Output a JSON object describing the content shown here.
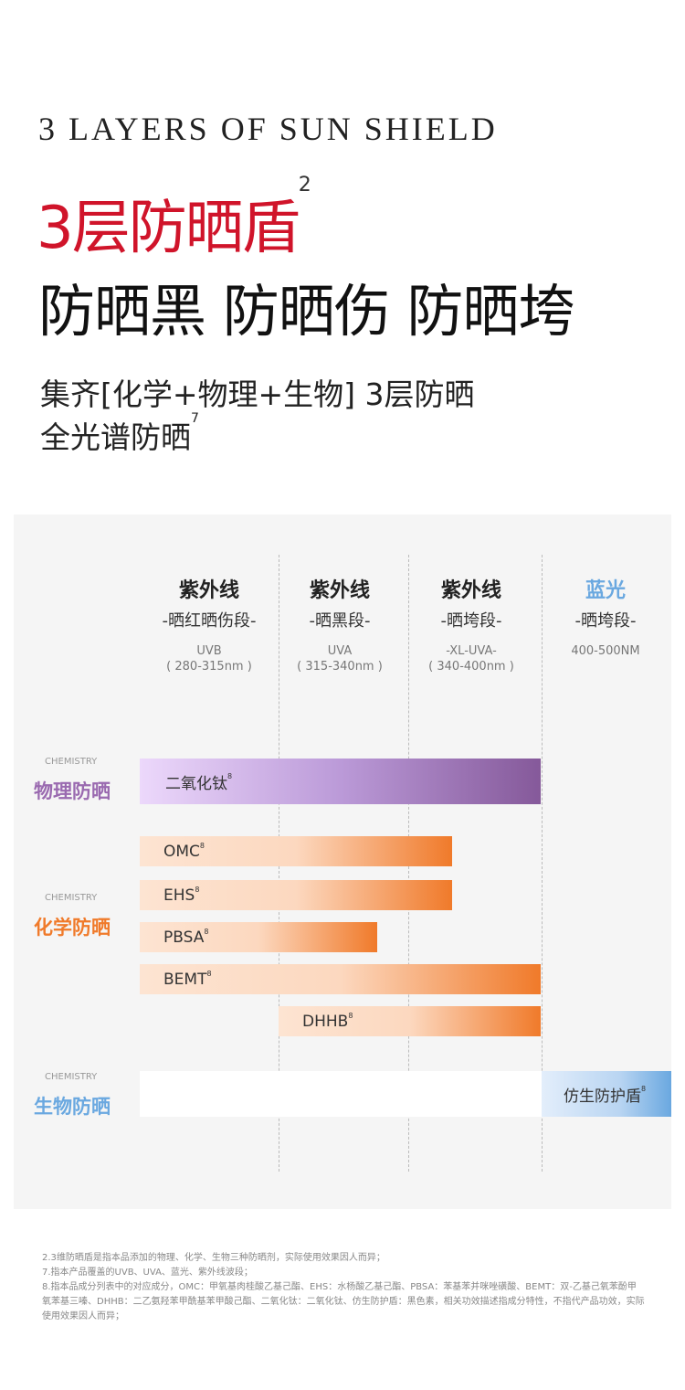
{
  "header": {
    "en_title": "3 LAYERS OF SUN SHIELD",
    "title": "3层防晒盾",
    "title_note": "2",
    "slogan": "防晒黑 防晒伤 防晒垮",
    "desc": [
      "集齐[化学+物理+生物] 3层防晒",
      "全光谱防晒"
    ],
    "desc_note": "7"
  },
  "columns": [
    {
      "title": "紫外线",
      "band": "-晒红晒伤段-",
      "range": [
        "UVB",
        "( 280-315nm )"
      ]
    },
    {
      "title": "紫外线",
      "band": "-晒黑段-",
      "range": [
        "UVA",
        "( 315-340nm )"
      ]
    },
    {
      "title": "紫外线",
      "band": "-晒垮段-",
      "range": [
        "-XL-UVA-",
        "( 340-400nm )"
      ]
    },
    {
      "title": "蓝光",
      "band": "-晒垮段-",
      "range": [
        "400-500NM"
      ]
    }
  ],
  "groups": [
    {
      "tag": "CHEMISTRY",
      "label": "物理防晒",
      "items": [
        {
          "name": "二氧化钛",
          "note": "8"
        }
      ]
    },
    {
      "tag": "CHEMISTRY",
      "label": "化学防晒",
      "items": [
        {
          "name": "OMC",
          "note": "8"
        },
        {
          "name": "EHS",
          "note": "8"
        },
        {
          "name": "PBSA",
          "note": "8"
        },
        {
          "name": "BEMT",
          "note": "8"
        },
        {
          "name": "DHHB",
          "note": "8"
        }
      ]
    },
    {
      "tag": "CHEMISTRY",
      "label": "生物防晒",
      "items": [
        {
          "name": "仿生防护盾",
          "note": "8"
        }
      ]
    }
  ],
  "footnotes": [
    "2.3维防晒盾是指本品添加的物理、化学、生物三种防晒剂，实际使用效果因人而异；",
    "7.指本产品覆盖的UVB、UVA、蓝光、紫外线波段；",
    "8.指本品成分列表中的对应成分，OMC：甲氧基肉桂酸乙基己酯、EHS：水杨酸乙基己酯、PBSA：苯基苯并咪唑磺酸、BEMT：双-乙基己氧苯酚甲氧苯基三嗪、DHHB：二乙氨羟苯甲酰基苯甲酸己酯、二氧化钛：二氧化钛、仿生防护盾：黑色素，相关功效描述指成分特性，不指代产品功效，实际使用效果因人而异；"
  ]
}
